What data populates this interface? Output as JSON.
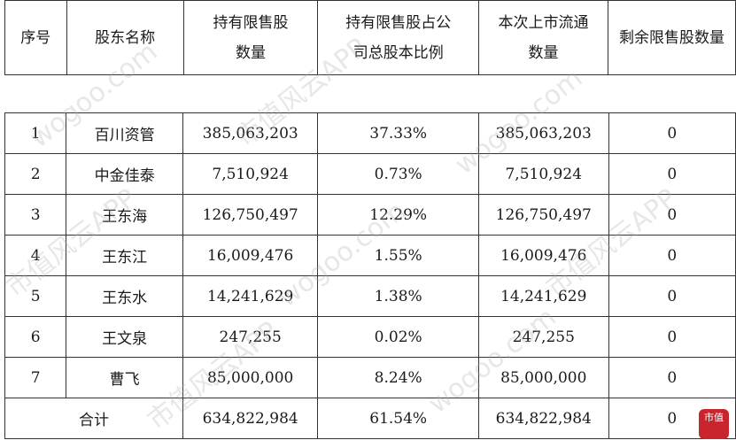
{
  "headers": {
    "no": "序号",
    "name": "股东名称",
    "hold_1": "持有限售股",
    "hold_2": "数量",
    "ratio_1": "持有限售股占公",
    "ratio_2": "司总股本比例",
    "float_1": "本次上市流通",
    "float_2": "数量",
    "rest": "剩余限售股数量"
  },
  "rows": [
    {
      "no": "1",
      "name": "百川资管",
      "hold": "385,063,203",
      "ratio": "37.33%",
      "float": "385,063,203",
      "rest": "0"
    },
    {
      "no": "2",
      "name": "中金佳泰",
      "hold": "7,510,924",
      "ratio": "0.73%",
      "float": "7,510,924",
      "rest": "0"
    },
    {
      "no": "3",
      "name": "王东海",
      "hold": "126,750,497",
      "ratio": "12.29%",
      "float": "126,750,497",
      "rest": "0"
    },
    {
      "no": "4",
      "name": "王东江",
      "hold": "16,009,476",
      "ratio": "1.55%",
      "float": "16,009,476",
      "rest": "0"
    },
    {
      "no": "5",
      "name": "王东水",
      "hold": "14,241,629",
      "ratio": "1.38%",
      "float": "14,241,629",
      "rest": "0"
    },
    {
      "no": "6",
      "name": "王文泉",
      "hold": "247,255",
      "ratio": "0.02%",
      "float": "247,255",
      "rest": "0"
    },
    {
      "no": "7",
      "name": "曹飞",
      "hold": "85,000,000",
      "ratio": "8.24%",
      "float": "85,000,000",
      "rest": "0"
    }
  ],
  "total": {
    "label": "合计",
    "hold": "634,822,984",
    "ratio": "61.54%",
    "float": "634,822,984",
    "rest": "0"
  },
  "watermark": {
    "text_1": "wogoo.com",
    "text_2": "市值风云APP"
  },
  "seal": {
    "text": "市值"
  }
}
